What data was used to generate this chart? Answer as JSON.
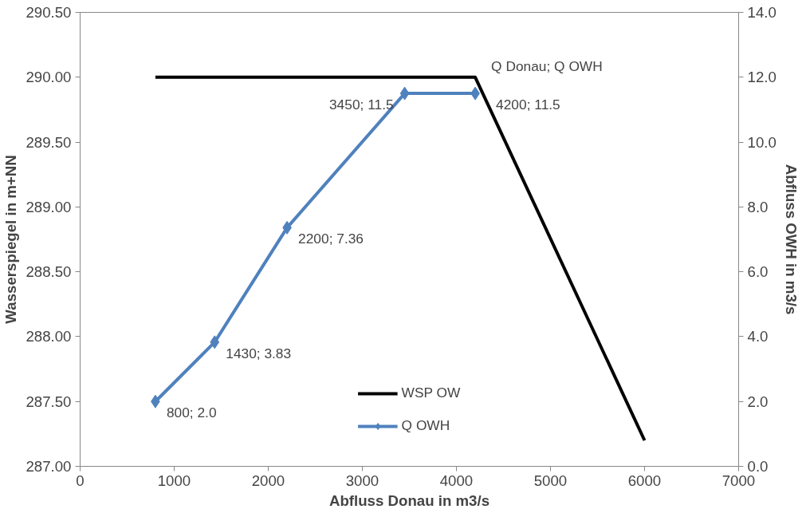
{
  "chart_data": {
    "type": "line",
    "xlabel": "Abfluss Donau in m3/s",
    "ylabel": "Wasserspiegel in m+NN",
    "y2label": "Abfluss OWH in m3/s",
    "xlim": [
      0,
      7000
    ],
    "xticks": [
      0,
      1000,
      2000,
      3000,
      4000,
      5000,
      6000,
      7000
    ],
    "ylim": [
      287.0,
      290.5
    ],
    "yticks": [
      {
        "value": 287.0,
        "label": "287.00"
      },
      {
        "value": 287.5,
        "label": "287.50"
      },
      {
        "value": 288.0,
        "label": "288.00"
      },
      {
        "value": 288.5,
        "label": "288.50"
      },
      {
        "value": 289.0,
        "label": "289.00"
      },
      {
        "value": 289.5,
        "label": "289.50"
      },
      {
        "value": 290.0,
        "label": "290.00"
      },
      {
        "value": 290.5,
        "label": "290.50"
      }
    ],
    "y2lim": [
      0,
      14
    ],
    "y2ticks": [
      {
        "value": 0,
        "label": "0.0"
      },
      {
        "value": 2,
        "label": "2.0"
      },
      {
        "value": 4,
        "label": "4.0"
      },
      {
        "value": 6,
        "label": "6.0"
      },
      {
        "value": 8,
        "label": "8.0"
      },
      {
        "value": 10,
        "label": "10.0"
      },
      {
        "value": 12,
        "label": "12.0"
      },
      {
        "value": 14,
        "label": "14.0"
      }
    ],
    "grid": false,
    "legend": "bottom",
    "annotations": [
      {
        "text": "Q Donau; Q OWH",
        "x": 4200,
        "y": 290.0
      }
    ],
    "series": [
      {
        "name": "WSP OW",
        "color": "#000000",
        "x": [
          800,
          4200,
          6000
        ],
        "values": [
          290.0,
          290.0,
          287.2
        ],
        "marker": "none"
      },
      {
        "name": "Q OWH",
        "color": "#4f81bd",
        "axis": "y2",
        "marker": "diamond",
        "x": [
          800,
          1430,
          2200,
          3450,
          4200
        ],
        "values": [
          2.0,
          3.83,
          7.36,
          11.5,
          11.5
        ],
        "value_labels": [
          "800; 2.0",
          "1430; 3.83",
          "2200; 7.36",
          "3450; 11.5",
          "4200; 11.5"
        ]
      }
    ]
  }
}
